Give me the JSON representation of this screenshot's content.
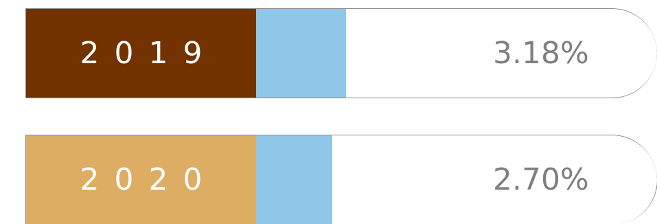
{
  "chart_data": {
    "type": "bar",
    "categories": [
      "2019",
      "2020"
    ],
    "values": [
      3.18,
      2.7
    ],
    "labels": [
      "3.18%",
      "2.70%"
    ],
    "category_colors": [
      "#733300",
      "#dcad62"
    ],
    "bar_color": "#90c6e8",
    "value_text_color": "#7f7f7f",
    "title": "",
    "xlabel": "",
    "ylabel": ""
  }
}
